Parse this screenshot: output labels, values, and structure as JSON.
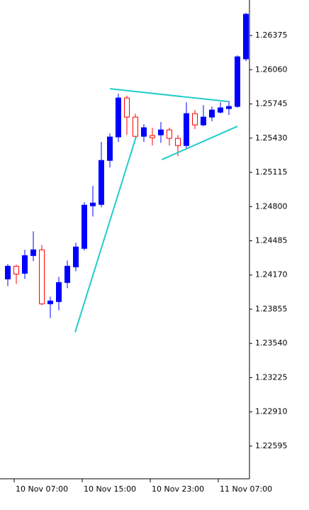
{
  "chart_data": {
    "type": "candlestick",
    "categories": [
      null,
      "10 Nov 07:00",
      null,
      null,
      null,
      null,
      null,
      null,
      null,
      "10 Nov 15:00",
      null,
      null,
      null,
      null,
      null,
      null,
      null,
      "10 Nov 23:00",
      null,
      null,
      null,
      null,
      null,
      null,
      null,
      "11 Nov 07:00",
      null,
      null,
      null
    ],
    "open": [
      1.24134,
      1.24251,
      1.24186,
      1.24349,
      1.24402,
      1.23905,
      1.23925,
      1.24101,
      1.24245,
      1.24415,
      1.24807,
      1.2482,
      1.25225,
      1.25441,
      1.258,
      1.25624,
      1.25447,
      1.25454,
      1.2546,
      1.25506,
      1.25428,
      1.25362,
      1.25656,
      1.25552,
      1.25624,
      1.25669,
      1.25702,
      1.25722,
      1.2616
    ],
    "high": [
      1.24271,
      1.24264,
      1.24402,
      1.24572,
      1.24447,
      1.2397,
      1.24153,
      1.24304,
      1.24467,
      1.2484,
      1.2499,
      1.25395,
      1.25473,
      1.25839,
      1.2582,
      1.25656,
      1.25558,
      1.25526,
      1.25578,
      1.25526,
      1.2546,
      1.25761,
      1.25689,
      1.25735,
      1.25722,
      1.25761,
      1.25774,
      1.26192,
      1.26584
    ],
    "low": [
      1.24068,
      1.24088,
      1.24134,
      1.24297,
      1.23892,
      1.23774,
      1.23846,
      1.24049,
      1.24206,
      1.24395,
      1.24709,
      1.24794,
      1.2516,
      1.25395,
      1.2546,
      1.25408,
      1.25395,
      1.25362,
      1.25388,
      1.25362,
      1.25264,
      1.2533,
      1.25513,
      1.25539,
      1.25585,
      1.25656,
      1.25643,
      1.25709,
      1.2614
    ],
    "close": [
      1.24251,
      1.24179,
      1.24349,
      1.24402,
      1.23905,
      1.23931,
      1.24101,
      1.24251,
      1.24428,
      1.24813,
      1.24833,
      1.25225,
      1.25441,
      1.258,
      1.25624,
      1.25447,
      1.25526,
      1.25434,
      1.25506,
      1.25428,
      1.25362,
      1.25656,
      1.25552,
      1.25624,
      1.25689,
      1.25709,
      1.25722,
      1.26179,
      1.26571
    ],
    "up_color": "#0000ff",
    "down_color": "#ff0000",
    "trendline_color": "#22cccc",
    "trendlines": [
      {
        "x": [
          7.92,
          15.08
        ],
        "y": [
          1.23644,
          1.25441
        ]
      },
      {
        "x": [
          12,
          25.9
        ],
        "y": [
          1.25885,
          1.25767
        ]
      },
      {
        "x": [
          18.1,
          27
        ],
        "y": [
          1.25232,
          1.25539
        ]
      }
    ],
    "ylim": [
      1.22294,
      1.26702
    ],
    "yticks": [
      1.26375,
      {
        "value": 1.2606,
        "label": "1.26060"
      },
      1.25745,
      {
        "value": 1.2543,
        "label": "1.25430"
      },
      1.25115,
      {
        "value": 1.248,
        "label": "1.24800"
      },
      1.24485,
      {
        "value": 1.2417,
        "label": "1.24170"
      },
      1.23855,
      {
        "value": 1.2354,
        "label": "1.23540"
      },
      1.23225,
      {
        "value": 1.2291,
        "label": "1.22910"
      },
      1.22595
    ]
  }
}
